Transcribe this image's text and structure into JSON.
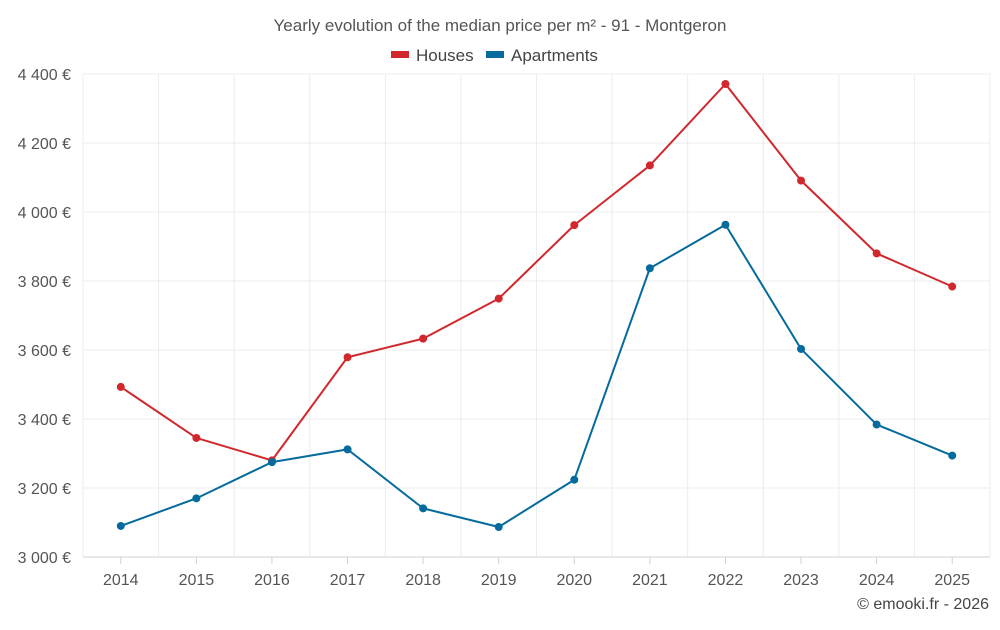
{
  "chart_data": {
    "type": "line",
    "title": "Yearly evolution of the median price per m² - 91 - Montgeron",
    "x": [
      "2014",
      "2015",
      "2016",
      "2017",
      "2018",
      "2019",
      "2020",
      "2021",
      "2022",
      "2023",
      "2024",
      "2025"
    ],
    "series": [
      {
        "name": "Houses",
        "color": "#d0282d",
        "values": [
          3493,
          3345,
          3280,
          3579,
          3633,
          3749,
          3962,
          4135,
          4371,
          4091,
          3880,
          3784
        ]
      },
      {
        "name": "Apartments",
        "color": "#056a9c",
        "values": [
          3090,
          3170,
          3275,
          3312,
          3141,
          3087,
          3224,
          3837,
          3963,
          3603,
          3384,
          3294
        ]
      }
    ],
    "ylim": [
      3000,
      4400
    ],
    "yticks": [
      3000,
      3200,
      3400,
      3600,
      3800,
      4000,
      4200,
      4400
    ],
    "ytick_labels": [
      "3 000 €",
      "3 200 €",
      "3 400 €",
      "3 600 €",
      "3 800 €",
      "4 000 €",
      "4 200 €",
      "4 400 €"
    ],
    "xlabel": "",
    "ylabel": "",
    "grid": true,
    "legend_position": "top-center"
  },
  "credit": "© emooki.fr - 2026"
}
